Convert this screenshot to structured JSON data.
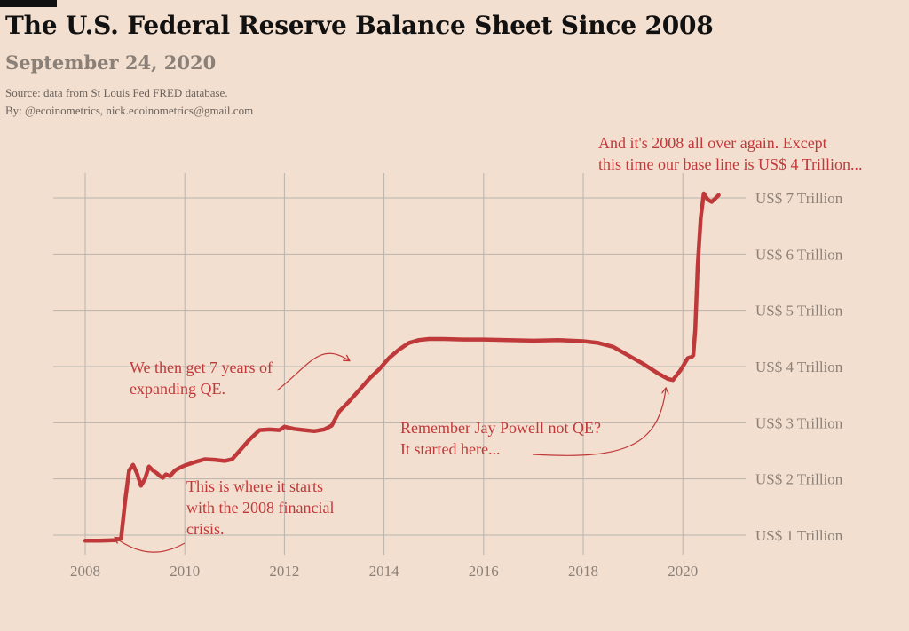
{
  "header": {
    "title": "The U.S. Federal Reserve Balance Sheet Since 2008",
    "subtitle": "September 24, 2020",
    "source": "Source: data from  St Louis Fed FRED database.",
    "byline": "By: @ecoinometrics, nick.ecoinometrics@gmail.com"
  },
  "colors": {
    "background": "#f3dfcf",
    "series": "#c0393a",
    "grid": "#b9b3ad",
    "tick_text": "#8a8078",
    "annotation": "#c0393a"
  },
  "chart_data": {
    "type": "line",
    "title": "The U.S. Federal Reserve Balance Sheet Since 2008",
    "xlabel": "",
    "ylabel": "",
    "xlim": [
      2007.6,
      2021.3
    ],
    "ylim": [
      0.6,
      7.4
    ],
    "grid": true,
    "x_ticks": [
      2008,
      2010,
      2012,
      2014,
      2016,
      2018,
      2020
    ],
    "x_tick_labels": [
      "2008",
      "2010",
      "2012",
      "2014",
      "2016",
      "2018",
      "2020"
    ],
    "y_ticks": [
      1,
      2,
      3,
      4,
      5,
      6,
      7
    ],
    "y_tick_labels": [
      "US$ 1 Trillion",
      "US$ 2 Trillion",
      "US$ 3 Trillion",
      "US$ 4 Trillion",
      "US$ 5 Trillion",
      "US$ 6 Trillion",
      "US$ 7 Trillion"
    ],
    "y_axis_position": "right",
    "series": [
      {
        "x": [
          2008.0,
          2008.3,
          2008.6,
          2008.72,
          2008.8,
          2008.88,
          2008.96,
          2009.04,
          2009.12,
          2009.2,
          2009.28,
          2009.36,
          2009.44,
          2009.5,
          2009.56,
          2009.62,
          2009.7,
          2009.8,
          2009.9,
          2010.0,
          2010.2,
          2010.4,
          2010.6,
          2010.8,
          2010.95,
          2011.1,
          2011.3,
          2011.5,
          2011.7,
          2011.9,
          2012.0,
          2012.2,
          2012.4,
          2012.6,
          2012.8,
          2012.95,
          2013.1,
          2013.3,
          2013.5,
          2013.7,
          2013.9,
          2014.1,
          2014.3,
          2014.5,
          2014.7,
          2014.9,
          2015.2,
          2015.6,
          2016.0,
          2016.5,
          2017.0,
          2017.5,
          2018.0,
          2018.3,
          2018.6,
          2018.9,
          2019.2,
          2019.5,
          2019.7,
          2019.8,
          2019.95,
          2020.1,
          2020.18,
          2020.21,
          2020.25,
          2020.3,
          2020.36,
          2020.42,
          2020.5,
          2020.58,
          2020.65,
          2020.72
        ],
        "values": [
          0.9,
          0.9,
          0.91,
          0.94,
          1.6,
          2.15,
          2.25,
          2.1,
          1.88,
          2.0,
          2.22,
          2.15,
          2.1,
          2.05,
          2.02,
          2.08,
          2.05,
          2.15,
          2.2,
          2.24,
          2.3,
          2.35,
          2.34,
          2.32,
          2.35,
          2.5,
          2.7,
          2.87,
          2.88,
          2.87,
          2.93,
          2.89,
          2.87,
          2.85,
          2.88,
          2.95,
          3.2,
          3.38,
          3.58,
          3.78,
          3.95,
          4.15,
          4.3,
          4.42,
          4.47,
          4.49,
          4.49,
          4.48,
          4.48,
          4.47,
          4.46,
          4.47,
          4.45,
          4.42,
          4.35,
          4.2,
          4.05,
          3.88,
          3.78,
          3.76,
          3.93,
          4.15,
          4.17,
          4.2,
          4.65,
          5.8,
          6.65,
          7.08,
          6.97,
          6.93,
          6.99,
          7.05
        ]
      }
    ],
    "annotations": [
      {
        "lines": [
          "This is where it starts",
          "with the 2008 financial",
          "crisis."
        ]
      },
      {
        "lines": [
          "We then get 7 years of",
          "expanding QE."
        ]
      },
      {
        "lines": [
          "Remember Jay Powell not QE?",
          "It started here..."
        ]
      },
      {
        "lines": [
          "And it's 2008 all over again. Except",
          "this time our base line is US$ 4 Trillion..."
        ]
      }
    ]
  }
}
